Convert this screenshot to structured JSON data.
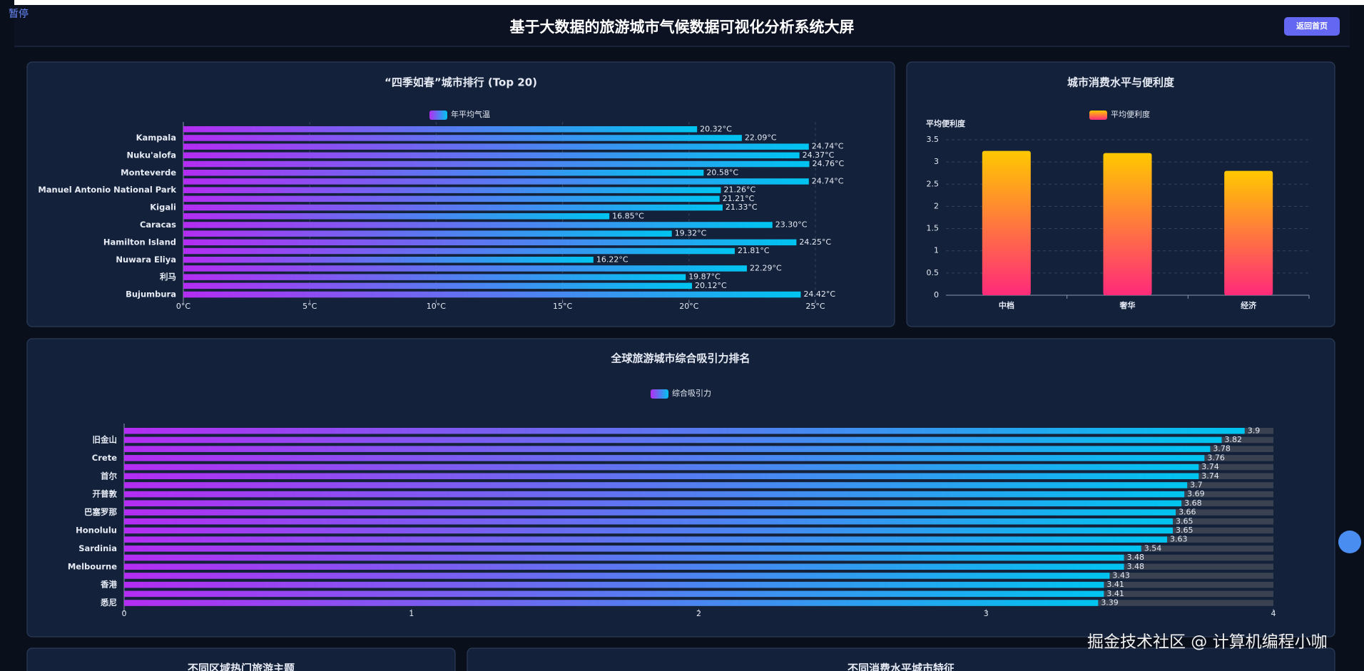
{
  "pause_label": "暂停",
  "header": {
    "title": "基于大数据的旅游城市气候数据可视化分析系统大屏",
    "button": "返回首页"
  },
  "chart_data": [
    {
      "type": "bar",
      "orientation": "horizontal",
      "title": "“四季如春”城市排行 (Top 20)",
      "categories": [
        null,
        "Kampala",
        null,
        "Nuku'alofa",
        null,
        "Monteverde",
        null,
        "Manuel Antonio National Park",
        null,
        "Kigali",
        null,
        "Caracas",
        null,
        "Hamilton Island",
        null,
        "Nuwara Eliya",
        null,
        "利马",
        null,
        "Bujumbura"
      ],
      "series": [
        {
          "name": "年平均气温",
          "color": [
            "#b42df2",
            "#00c4f0"
          ],
          "values": [
            20.32,
            22.09,
            24.74,
            24.37,
            24.76,
            20.58,
            24.74,
            21.26,
            21.21,
            21.33,
            16.85,
            23.3,
            19.32,
            24.25,
            21.81,
            16.22,
            22.29,
            19.87,
            20.12,
            24.42
          ],
          "value_labels": [
            "20.32°C",
            "22.09°C",
            "24.74°C",
            "24.37°C",
            "24.76°C",
            "20.58°C",
            "24.74°C",
            "21.26°C",
            "21.21°C",
            "21.33°C",
            "16.85°C",
            "23.30°C",
            "19.32°C",
            "24.25°C",
            "21.81°C",
            "16.22°C",
            "22.29°C",
            "19.87°C",
            "20.12°C",
            "24.42°C"
          ]
        }
      ],
      "xlim": [
        0,
        25
      ],
      "xticks": [
        {
          "value": 0,
          "label": "0°C"
        },
        {
          "value": 5,
          "label": "5°C"
        },
        {
          "value": 10,
          "label": "10°C"
        },
        {
          "value": 15,
          "label": "15°C"
        },
        {
          "value": 20,
          "label": "20°C"
        },
        {
          "value": 25,
          "label": "25°C"
        }
      ],
      "grid": true,
      "background_bars": false
    },
    {
      "type": "bar",
      "orientation": "vertical",
      "title": "城市消费水平与便利度",
      "y_label": "平均便利度",
      "categories": [
        "中档",
        "奢华",
        "经济"
      ],
      "series": [
        {
          "name": "平均便利度",
          "color": [
            "#ffc800",
            "#ff2a7a"
          ],
          "values": [
            3.25,
            3.2,
            2.8
          ]
        }
      ],
      "ylim": [
        0,
        3.5
      ],
      "yticks": [
        0,
        0.5,
        1,
        1.5,
        2,
        2.5,
        3,
        3.5
      ],
      "grid": true
    },
    {
      "type": "bar",
      "orientation": "horizontal",
      "title": "全球旅游城市综合吸引力排名",
      "categories": [
        null,
        "旧金山",
        null,
        "Crete",
        null,
        "首尔",
        null,
        "开普敦",
        null,
        "巴塞罗那",
        null,
        "Honolulu",
        null,
        "Sardinia",
        null,
        "Melbourne",
        null,
        "香港",
        null,
        "悉尼"
      ],
      "series": [
        {
          "name": "综合吸引力",
          "color": [
            "#b42df2",
            "#00c4f0"
          ],
          "values": [
            3.9,
            3.82,
            3.78,
            3.76,
            3.74,
            3.74,
            3.7,
            3.69,
            3.68,
            3.66,
            3.65,
            3.65,
            3.63,
            3.54,
            3.48,
            3.48,
            3.43,
            3.41,
            3.41,
            3.39
          ]
        }
      ],
      "xlim": [
        0,
        4
      ],
      "xticks": [
        0,
        1,
        2,
        3,
        4
      ],
      "grid": false,
      "background_bars": true
    }
  ],
  "panels": [
    {
      "title": "不同区域热门旅游主题"
    },
    {
      "title": "不同消费水平城市特征"
    }
  ],
  "watermark": "掘金技术社区 @ 计算机编程小咖"
}
